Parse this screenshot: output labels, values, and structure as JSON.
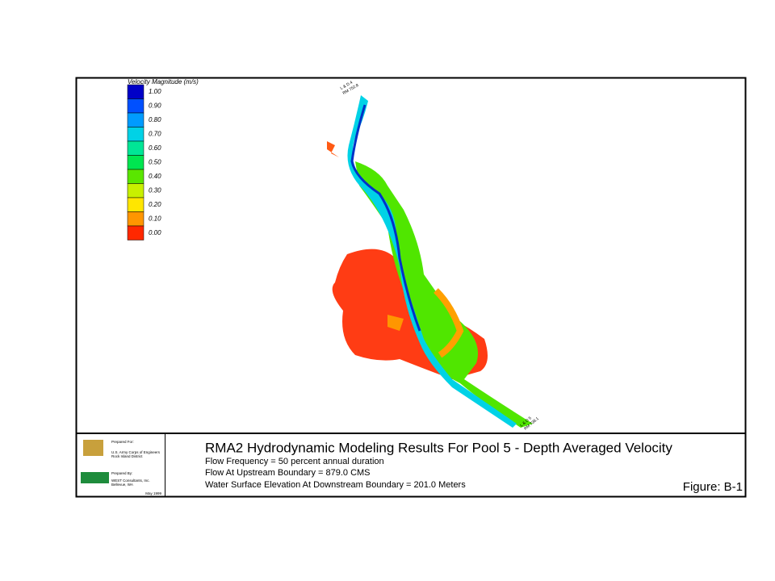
{
  "legend": {
    "title": "Velocity Magnitude (m/s)",
    "items": [
      {
        "label": "1.00",
        "color": "#0000c8"
      },
      {
        "label": "0.90",
        "color": "#0050ff"
      },
      {
        "label": "0.80",
        "color": "#009bff"
      },
      {
        "label": "0.70",
        "color": "#00d2e6"
      },
      {
        "label": "0.60",
        "color": "#00e696"
      },
      {
        "label": "0.50",
        "color": "#00e650"
      },
      {
        "label": "0.40",
        "color": "#5ae600"
      },
      {
        "label": "0.30",
        "color": "#c8f000"
      },
      {
        "label": "0.20",
        "color": "#ffe600"
      },
      {
        "label": "0.10",
        "color": "#ff9600"
      },
      {
        "label": "0.00",
        "color": "#ff2800"
      }
    ]
  },
  "map": {
    "upstream_label": [
      "L & D 4",
      "RM 752.8"
    ],
    "downstream_label": [
      "L & D 5",
      "RM 738.1"
    ]
  },
  "logos": {
    "prepared_for": "Prepared For:",
    "client": [
      "U.S. Army Corps of Engineers",
      "Rock Island District"
    ],
    "prepared_by": "Prepared By:",
    "consultant": [
      "WEST Consultants, Inc.",
      "Bellevue, WA"
    ],
    "date": "May 1999"
  },
  "title_block": {
    "title": "RMA2 Hydrodynamic Modeling Results For Pool 5 - Depth Averaged Velocity",
    "lines": [
      "Flow Frequency = 50 percent annual duration",
      "Flow At Upstream Boundary = 879.0 CMS",
      "Water Surface Elevation At Downstream Boundary = 201.0 Meters"
    ],
    "figure": "Figure: B-1"
  }
}
